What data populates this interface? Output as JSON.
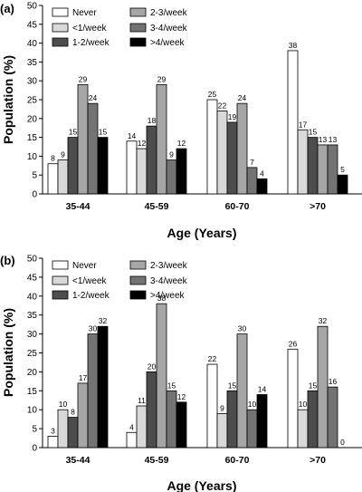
{
  "chart_data": [
    {
      "type": "bar",
      "panel_label": "(a)",
      "categories": [
        "35-44",
        "45-59",
        "60-70",
        ">70"
      ],
      "series": [
        {
          "name": "Never",
          "color": "#ffffff",
          "values": [
            8,
            14,
            25,
            38
          ]
        },
        {
          "name": "<1/week",
          "color": "#d9d9d9",
          "values": [
            9,
            12,
            22,
            17
          ]
        },
        {
          "name": "1-2/week",
          "color": "#4d4d4d",
          "values": [
            15,
            18,
            19,
            15
          ]
        },
        {
          "name": "2-3/week",
          "color": "#a6a6a6",
          "values": [
            29,
            29,
            24,
            13
          ]
        },
        {
          "name": "3-4/week",
          "color": "#737373",
          "values": [
            24,
            9,
            7,
            13
          ]
        },
        {
          "name": ">4/week",
          "color": "#000000",
          "values": [
            15,
            12,
            4,
            5
          ]
        }
      ],
      "xlabel": "Age (Years)",
      "ylabel": "Population (%)",
      "ylim": [
        0,
        50
      ],
      "yticks": [
        0,
        5,
        10,
        15,
        20,
        25,
        30,
        35,
        40,
        45,
        50
      ],
      "grid": false,
      "legend": "top"
    },
    {
      "type": "bar",
      "panel_label": "(b)",
      "categories": [
        "35-44",
        "45-59",
        "60-70",
        ">70"
      ],
      "series": [
        {
          "name": "Never",
          "color": "#ffffff",
          "values": [
            3,
            4,
            22,
            26
          ]
        },
        {
          "name": "<1/week",
          "color": "#d9d9d9",
          "values": [
            10,
            11,
            9,
            10
          ]
        },
        {
          "name": "1-2/week",
          "color": "#4d4d4d",
          "values": [
            8,
            20,
            15,
            15
          ]
        },
        {
          "name": "2-3/week",
          "color": "#a6a6a6",
          "values": [
            17,
            38,
            30,
            32
          ]
        },
        {
          "name": "3-4/week",
          "color": "#737373",
          "values": [
            30,
            15,
            10,
            16
          ]
        },
        {
          "name": ">4/week",
          "color": "#000000",
          "values": [
            32,
            12,
            14,
            0
          ]
        }
      ],
      "xlabel": "Age (Years)",
      "ylabel": "Population (%)",
      "ylim": [
        0,
        50
      ],
      "yticks": [
        0,
        5,
        10,
        15,
        20,
        25,
        30,
        35,
        40,
        45,
        50
      ],
      "grid": false,
      "legend": "top"
    }
  ]
}
